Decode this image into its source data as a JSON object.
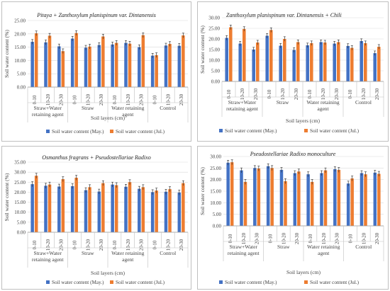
{
  "chart_data": [
    {
      "type": "bar",
      "title": "Pitaya + Zanthoxylum planispinum var. Dintanensis",
      "ylabel": "Soil water content (%)",
      "xlabel": "Soil layers (cm)",
      "ylim": [
        0,
        25
      ],
      "yticks": [
        "0.00",
        "5.00",
        "10.00",
        "15.00",
        "20.00",
        "25.00"
      ],
      "categories": [
        "0-10",
        "10-20",
        "20-30",
        "0-10",
        "10-20",
        "20-30",
        "0-10",
        "10-20",
        "20-30",
        "0-10",
        "10-20",
        "20-30"
      ],
      "groups": [
        "Straw+Water retaining agent",
        "Straw",
        "Water retaining agent",
        "Control"
      ],
      "legend_position": "bottom",
      "series": [
        {
          "name": "Soil water content (May.)",
          "color": "#4472c4",
          "values": [
            17.0,
            16.8,
            15.3,
            18.2,
            14.8,
            15.8,
            16.0,
            16.6,
            15.0,
            11.8,
            15.6,
            15.5
          ]
        },
        {
          "name": "Soil water content (Jul.)",
          "color": "#ed7d31",
          "values": [
            20.2,
            19.3,
            13.5,
            20.3,
            15.2,
            19.0,
            16.6,
            16.3,
            19.5,
            12.0,
            16.2,
            19.4
          ]
        }
      ]
    },
    {
      "type": "bar",
      "title": "Zanthoxylum planispinum var. Dintanensis + Chili",
      "ylabel": "Soil water content (%)",
      "xlabel": "Soil layers (cm)",
      "ylim": [
        0,
        30
      ],
      "yticks": [
        "0.00",
        "5.00",
        "10.00",
        "15.00",
        "20.00",
        "25.00",
        "30.00"
      ],
      "categories": [
        "0-10",
        "10-20",
        "20-30",
        "0-10",
        "10-20",
        "20-30",
        "0-10",
        "10-20",
        "20-30",
        "0-10",
        "10-20",
        "20-30"
      ],
      "groups": [
        "Straw+Water retaining agent",
        "Straw",
        "Water retaining agent",
        "Control"
      ],
      "legend_position": "bottom",
      "series": [
        {
          "name": "Soil water content (May.)",
          "color": "#4472c4",
          "values": [
            20.5,
            17.8,
            15.0,
            21.5,
            16.8,
            14.8,
            17.0,
            18.5,
            17.8,
            16.7,
            19.0,
            13.3
          ]
        },
        {
          "name": "Soil water content (Jul.)",
          "color": "#ed7d31",
          "values": [
            25.5,
            24.7,
            18.3,
            24.2,
            20.0,
            18.5,
            18.0,
            18.3,
            18.5,
            15.8,
            18.0,
            16.3
          ]
        }
      ]
    },
    {
      "type": "bar",
      "title": "Osmanthus fragrans + Pseudostellariae Radixo",
      "ylabel": "Soil water content (%)",
      "xlabel": "Soil layers (cm)",
      "ylim": [
        0,
        35
      ],
      "yticks": [
        "0.00",
        "5.00",
        "10.00",
        "15.00",
        "20.00",
        "25.00",
        "30.00",
        "35.00"
      ],
      "categories": [
        "0-10",
        "10-20",
        "20-30",
        "0-10",
        "10-20",
        "20-30",
        "0-10",
        "10-20",
        "20-30",
        "0-10",
        "10-20",
        "20-30"
      ],
      "groups": [
        "Straw+Water retaining agent",
        "Straw",
        "Water retaining agent",
        "Control"
      ],
      "legend_position": "bottom",
      "series": [
        {
          "name": "Soil water content (May.)",
          "color": "#4472c4",
          "values": [
            24.0,
            23.2,
            22.8,
            23.0,
            21.0,
            20.3,
            23.8,
            22.7,
            21.7,
            20.0,
            20.2,
            19.8
          ]
        },
        {
          "name": "Soil water content (Jul.)",
          "color": "#ed7d31",
          "values": [
            28.2,
            23.8,
            26.5,
            27.2,
            22.5,
            24.5,
            23.5,
            25.0,
            22.5,
            20.8,
            21.5,
            24.5
          ]
        }
      ]
    },
    {
      "type": "bar",
      "title": "Pseudostellariae Radixo monoculture",
      "ylabel": "Soil water content (%)",
      "xlabel": "Soil layers (cm)",
      "ylim": [
        0,
        30
      ],
      "yticks": [
        "0.00",
        "5.00",
        "10.00",
        "15.00",
        "20.00",
        "25.00",
        "30.00"
      ],
      "categories": [
        "0-10",
        "10-20",
        "20-30",
        "0-10",
        "10-20",
        "20-30",
        "0-10",
        "10-20",
        "20-30",
        "0-10",
        "10-20",
        "20-30"
      ],
      "groups": [
        "Straw+Water retaining agent",
        "Straw",
        "Water retaining agent",
        "Control"
      ],
      "legend_position": "bottom",
      "series": [
        {
          "name": "Soil water content (May.)",
          "color": "#4472c4",
          "values": [
            27.3,
            24.0,
            25.0,
            25.8,
            24.2,
            22.8,
            22.3,
            22.8,
            24.5,
            18.3,
            22.8,
            23.0
          ]
        },
        {
          "name": "Soil water content (Jul.)",
          "color": "#ed7d31",
          "values": [
            27.5,
            19.0,
            24.8,
            25.0,
            19.3,
            23.5,
            19.0,
            24.0,
            24.2,
            20.5,
            22.3,
            22.5
          ]
        }
      ]
    }
  ]
}
